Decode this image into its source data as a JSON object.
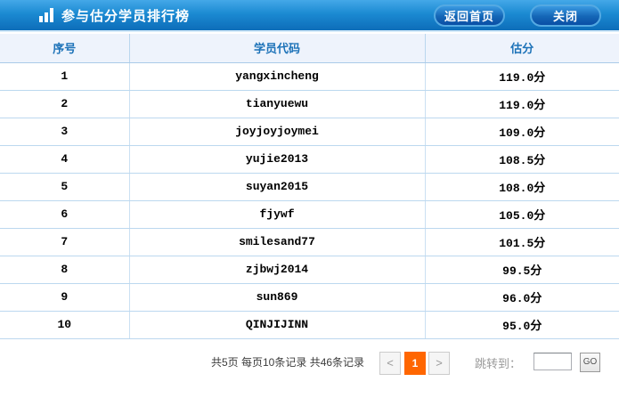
{
  "header": {
    "title": "参与估分学员排行榜",
    "icon": "bar-chart-icon",
    "back_button": "返回首页",
    "close_button": "关闭"
  },
  "table": {
    "columns": [
      "序号",
      "学员代码",
      "估分"
    ],
    "rows": [
      {
        "rank": "1",
        "code": "yangxincheng",
        "score": "119.0分"
      },
      {
        "rank": "2",
        "code": "tianyuewu",
        "score": "119.0分"
      },
      {
        "rank": "3",
        "code": "joyjoyjoymei",
        "score": "109.0分"
      },
      {
        "rank": "4",
        "code": "yujie2013",
        "score": "108.5分"
      },
      {
        "rank": "5",
        "code": "suyan2015",
        "score": "108.0分"
      },
      {
        "rank": "6",
        "code": "fjywf",
        "score": "105.0分"
      },
      {
        "rank": "7",
        "code": "smilesand77",
        "score": "101.5分"
      },
      {
        "rank": "8",
        "code": "zjbwj2014",
        "score": "99.5分"
      },
      {
        "rank": "9",
        "code": "sun869",
        "score": "96.0分"
      },
      {
        "rank": "10",
        "code": "QINJIJINN",
        "score": "95.0分"
      }
    ]
  },
  "pagination": {
    "summary": "共5页 每页10条记录 共46条记录",
    "prev": "<",
    "current_page": "1",
    "next": ">",
    "jump_label": "跳转到：",
    "jump_value": "",
    "jump_placeholder": "",
    "go": "GO"
  },
  "colors": {
    "titlebar_blue": "#1583cc",
    "button_blue": "#0f5cae",
    "header_row_bg": "#eef3fc",
    "header_text_blue": "#1c72b8",
    "row_border_blue": "#bcd8ef",
    "active_page_orange": "#ff6600"
  }
}
